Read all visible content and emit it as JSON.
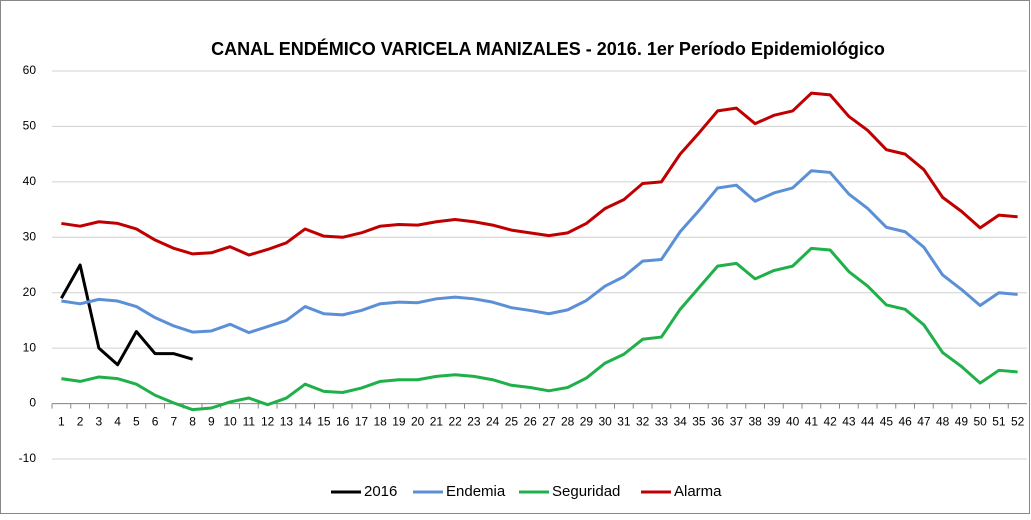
{
  "chart_data": {
    "type": "line",
    "title": "CANAL ENDÉMICO VARICELA MANIZALES - 2016. 1er Período Epidemiológico",
    "categories": [
      "1",
      "2",
      "3",
      "4",
      "5",
      "6",
      "7",
      "8",
      "9",
      "10",
      "11",
      "12",
      "13",
      "14",
      "15",
      "16",
      "17",
      "18",
      "19",
      "20",
      "21",
      "22",
      "23",
      "24",
      "25",
      "26",
      "27",
      "28",
      "29",
      "30",
      "31",
      "32",
      "33",
      "34",
      "35",
      "36",
      "37",
      "38",
      "39",
      "40",
      "41",
      "42",
      "43",
      "44",
      "45",
      "46",
      "47",
      "48",
      "49",
      "50",
      "51",
      "52"
    ],
    "series": [
      {
        "name": "2016",
        "color": "#000000",
        "values": [
          19,
          25,
          10,
          7,
          13,
          9,
          9,
          8,
          null,
          null,
          null,
          null,
          null,
          null,
          null,
          null,
          null,
          null,
          null,
          null,
          null,
          null,
          null,
          null,
          null,
          null,
          null,
          null,
          null,
          null,
          null,
          null,
          null,
          null,
          null,
          null,
          null,
          null,
          null,
          null,
          null,
          null,
          null,
          null,
          null,
          null,
          null,
          null,
          null,
          null,
          null,
          null
        ]
      },
      {
        "name": "Endemia",
        "color": "#5b8fd6",
        "values": [
          18.5,
          18,
          18.8,
          18.5,
          17.5,
          15.5,
          14,
          12.9,
          13.1,
          14.3,
          12.8,
          13.9,
          15,
          17.5,
          16.2,
          16,
          16.8,
          18,
          18.3,
          18.2,
          18.9,
          19.2,
          18.9,
          18.3,
          17.3,
          16.8,
          16.2,
          16.9,
          18.6,
          21.2,
          22.9,
          25.7,
          26,
          31,
          34.8,
          38.9,
          39.4,
          36.5,
          38,
          38.9,
          42,
          41.7,
          37.8,
          35.2,
          31.8,
          31,
          28.2,
          23.2,
          20.6,
          17.7,
          20,
          19.7
        ]
      },
      {
        "name": "Seguridad",
        "color": "#1fb04a",
        "values": [
          4.5,
          4,
          4.8,
          4.5,
          3.5,
          1.5,
          0.1,
          -1.1,
          -0.8,
          0.3,
          1,
          -0.2,
          1,
          3.5,
          2.2,
          2,
          2.8,
          4,
          4.3,
          4.3,
          4.9,
          5.2,
          4.9,
          4.3,
          3.3,
          2.9,
          2.3,
          2.9,
          4.6,
          7.3,
          8.9,
          11.6,
          12,
          17,
          20.9,
          24.8,
          25.3,
          22.5,
          24,
          24.8,
          28,
          27.7,
          23.8,
          21.2,
          17.8,
          17,
          14.2,
          9.2,
          6.7,
          3.7,
          6,
          5.7
        ]
      },
      {
        "name": "Alarma",
        "color": "#c00000",
        "values": [
          32.5,
          32,
          32.8,
          32.5,
          31.5,
          29.5,
          28,
          27,
          27.2,
          28.3,
          26.8,
          27.8,
          29,
          31.5,
          30.2,
          30,
          30.8,
          32,
          32.3,
          32.2,
          32.8,
          33.2,
          32.8,
          32.2,
          31.3,
          30.8,
          30.3,
          30.8,
          32.5,
          35.2,
          36.8,
          39.7,
          40,
          45,
          48.8,
          52.8,
          53.3,
          50.5,
          52,
          52.8,
          56,
          55.7,
          51.8,
          49.3,
          45.8,
          45,
          42.2,
          37.2,
          34.7,
          31.7,
          34,
          33.7
        ]
      }
    ],
    "ylim": [
      -10,
      60
    ],
    "yticks": [
      -10,
      0,
      10,
      20,
      30,
      40,
      50,
      60
    ],
    "grid": true,
    "legend": "bottom"
  }
}
